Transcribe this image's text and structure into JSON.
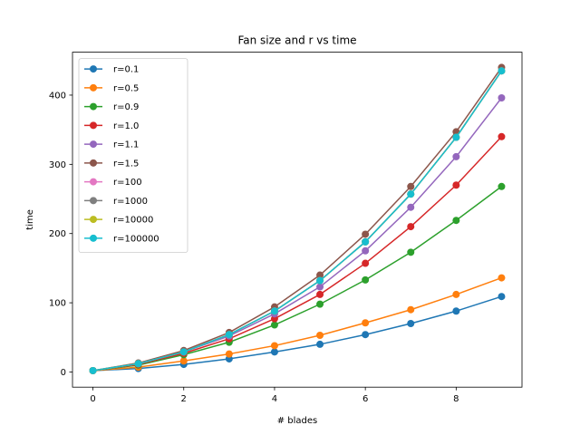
{
  "chart_data": {
    "type": "line",
    "title": "Fan size and r vs time",
    "xlabel": "# blades",
    "ylabel": "time",
    "xlim": [
      -0.45,
      9.45
    ],
    "ylim": [
      -21.9,
      462.0
    ],
    "xticks": [
      0,
      2,
      4,
      6,
      8
    ],
    "yticks": [
      0,
      100,
      200,
      300,
      400
    ],
    "grid": false,
    "legend": "upper left",
    "x": [
      0,
      1,
      2,
      3,
      4,
      5,
      6,
      7,
      8,
      9
    ],
    "series": [
      {
        "name": "r=0.1",
        "color": "#1f77b4",
        "values": [
          2,
          5,
          11,
          19,
          29,
          40,
          54,
          70,
          88,
          109
        ]
      },
      {
        "name": "r=0.5",
        "color": "#ff7f0e",
        "values": [
          2,
          7,
          16,
          26,
          38,
          53,
          71,
          90,
          112,
          136
        ]
      },
      {
        "name": "r=0.9",
        "color": "#2ca02c",
        "values": [
          2,
          10,
          25,
          43,
          68,
          98,
          133,
          173,
          219,
          268
        ]
      },
      {
        "name": "r=1.0",
        "color": "#d62728",
        "values": [
          2,
          11,
          27,
          48,
          77,
          112,
          157,
          210,
          270,
          340
        ]
      },
      {
        "name": "r=1.1",
        "color": "#9467bd",
        "values": [
          2,
          12,
          29,
          52,
          84,
          123,
          175,
          238,
          311,
          396
        ]
      },
      {
        "name": "r=1.5",
        "color": "#8c564b",
        "values": [
          2,
          13,
          31,
          57,
          94,
          140,
          199,
          268,
          347,
          440
        ]
      },
      {
        "name": "r=100",
        "color": "#e377c2",
        "values": [
          2,
          12,
          29,
          54,
          88,
          132,
          188,
          257,
          339,
          435
        ]
      },
      {
        "name": "r=1000",
        "color": "#7f7f7f",
        "values": [
          2,
          12,
          29,
          54,
          88,
          132,
          188,
          257,
          339,
          435
        ]
      },
      {
        "name": "r=10000",
        "color": "#bcbd22",
        "values": [
          2,
          12,
          29,
          54,
          88,
          132,
          188,
          257,
          339,
          435
        ]
      },
      {
        "name": "r=100000",
        "color": "#17becf",
        "values": [
          2,
          12,
          29,
          54,
          88,
          132,
          188,
          257,
          339,
          435
        ]
      }
    ]
  }
}
